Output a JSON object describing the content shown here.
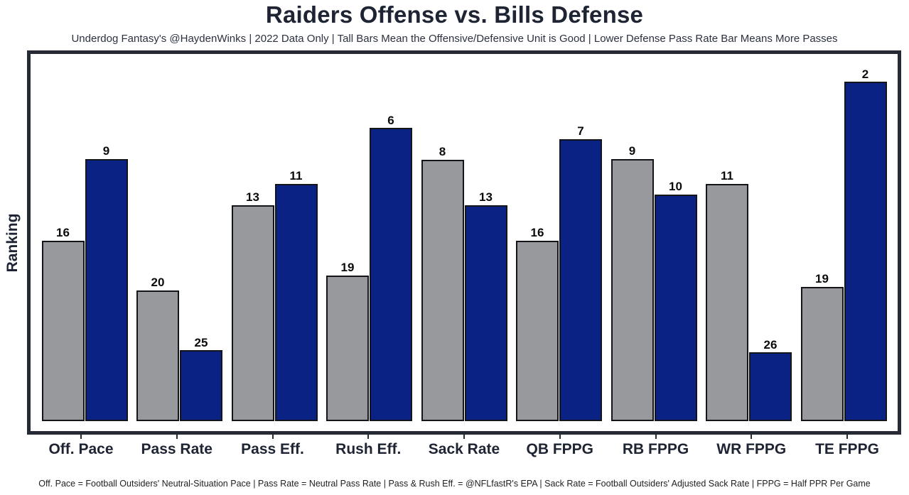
{
  "title": "Raiders Offense vs. Bills Defense",
  "subtitle": "Underdog Fantasy's @HaydenWinks | 2022 Data Only | Tall Bars Mean the Offensive/Defensive Unit is Good | Lower Defense Pass Rate Bar Means More Passes",
  "ylabel": "Ranking",
  "footnote": "Off. Pace = Football Outsiders' Neutral-Situation Pace | Pass Rate = Neutral Pass Rate | Pass & Rush Eff. = @NFLfastR's EPA | Sack Rate = Football Outsiders' Adjusted Sack Rate | FPPG = Half PPR Per Game",
  "colors": {
    "offense_bar": "#97999c",
    "defense_bar": "#0a2283",
    "bar_outline": "#14151a",
    "frame": "#262a35",
    "heading_text": "#1e2433",
    "value_label_text": "#0b0b0b"
  },
  "chart_data": {
    "type": "bar",
    "title": "Raiders Offense vs. Bills Defense",
    "subtitle": "Underdog Fantasy's @HaydenWinks | 2022 Data Only | Tall Bars Mean the Offensive/Defensive Unit is Good | Lower Defense Pass Rate Bar Means More Passes",
    "xlabel": "",
    "ylabel": "Ranking",
    "categories": [
      "Off. Pace",
      "Pass Rate",
      "Pass Eff.",
      "Rush Eff.",
      "Sack Rate",
      "QB FPPG",
      "RB FPPG",
      "WR FPPG",
      "TE FPPG"
    ],
    "series": [
      {
        "name": "Raiders Offense",
        "color": "#97999c",
        "values": [
          16,
          20,
          13,
          19,
          8,
          16,
          9,
          11,
          19
        ],
        "bar_heights_pct": [
          49.2,
          35.6,
          58.8,
          39.7,
          71.2,
          49.2,
          71.4,
          64.6,
          36.6
        ]
      },
      {
        "name": "Bills Defense",
        "color": "#0a2283",
        "values": [
          9,
          25,
          11,
          6,
          13,
          7,
          10,
          26,
          2
        ],
        "bar_heights_pct": [
          71.4,
          19.3,
          64.6,
          79.8,
          58.8,
          76.8,
          61.7,
          18.7,
          92.4
        ]
      }
    ],
    "value_label_meaning": "NFL ranking (1 = best); bar height reflects underlying stat value, taller = better unit",
    "legend_position": "none",
    "grid": false,
    "footnote": "Off. Pace = Football Outsiders' Neutral-Situation Pace | Pass Rate = Neutral Pass Rate | Pass & Rush Eff. = @NFLfastR's EPA | Sack Rate = Football Outsiders' Adjusted Sack Rate | FPPG = Half PPR Per Game"
  }
}
